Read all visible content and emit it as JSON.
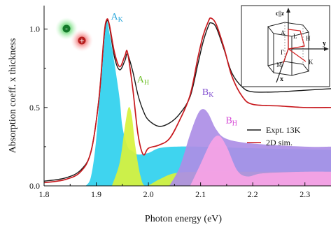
{
  "chart_data": {
    "type": "area",
    "xlabel": "Photon energy (eV)",
    "ylabel": "Absorption coeff. x thickness",
    "xlim": [
      1.8,
      2.35
    ],
    "ylim": [
      0,
      1.15
    ],
    "x_ticks": [
      1.8,
      1.9,
      2.0,
      2.1,
      2.2,
      2.3
    ],
    "x_tick_labels": [
      "1.8",
      "1.9",
      "2.0",
      "2.1",
      "2.2",
      "2.3"
    ],
    "y_ticks": [
      0,
      0.5,
      1.0
    ],
    "y_tick_labels": [
      "0.0",
      "0.5",
      "1.0"
    ],
    "grid": false,
    "legend_position": "right",
    "legend": [
      {
        "label": "Expt. 13K",
        "color": "#1a1a1a"
      },
      {
        "label": "2D sim.",
        "color": "#c8191e"
      }
    ],
    "lines": [
      {
        "name": "Expt. 13K",
        "color": "#1a1a1a",
        "points": [
          [
            1.8,
            0.03
          ],
          [
            1.84,
            0.05
          ],
          [
            1.87,
            0.1
          ],
          [
            1.89,
            0.22
          ],
          [
            1.905,
            0.55
          ],
          [
            1.915,
            0.95
          ],
          [
            1.92,
            1.05
          ],
          [
            1.925,
            1.02
          ],
          [
            1.935,
            0.82
          ],
          [
            1.945,
            0.74
          ],
          [
            1.955,
            0.8
          ],
          [
            1.96,
            0.84
          ],
          [
            1.97,
            0.73
          ],
          [
            1.98,
            0.58
          ],
          [
            1.99,
            0.48
          ],
          [
            2.0,
            0.42
          ],
          [
            2.02,
            0.38
          ],
          [
            2.04,
            0.4
          ],
          [
            2.06,
            0.46
          ],
          [
            2.08,
            0.57
          ],
          [
            2.095,
            0.78
          ],
          [
            2.105,
            0.92
          ],
          [
            2.115,
            1.02
          ],
          [
            2.12,
            1.04
          ],
          [
            2.13,
            1.01
          ],
          [
            2.145,
            0.87
          ],
          [
            2.16,
            0.72
          ],
          [
            2.18,
            0.63
          ],
          [
            2.2,
            0.6
          ],
          [
            2.25,
            0.6
          ],
          [
            2.3,
            0.61
          ],
          [
            2.35,
            0.62
          ]
        ]
      },
      {
        "name": "2D sim.",
        "color": "#c8191e",
        "points": [
          [
            1.8,
            0.02
          ],
          [
            1.84,
            0.04
          ],
          [
            1.87,
            0.09
          ],
          [
            1.89,
            0.22
          ],
          [
            1.905,
            0.55
          ],
          [
            1.915,
            0.96
          ],
          [
            1.92,
            1.06
          ],
          [
            1.925,
            1.03
          ],
          [
            1.935,
            0.85
          ],
          [
            1.945,
            0.76
          ],
          [
            1.955,
            0.83
          ],
          [
            1.96,
            0.85
          ],
          [
            1.97,
            0.62
          ],
          [
            1.98,
            0.33
          ],
          [
            1.99,
            0.2
          ],
          [
            2.0,
            0.24
          ],
          [
            2.02,
            0.26
          ],
          [
            2.04,
            0.3
          ],
          [
            2.06,
            0.42
          ],
          [
            2.08,
            0.58
          ],
          [
            2.095,
            0.82
          ],
          [
            2.105,
            0.96
          ],
          [
            2.115,
            1.05
          ],
          [
            2.12,
            1.07
          ],
          [
            2.13,
            1.03
          ],
          [
            2.145,
            0.88
          ],
          [
            2.16,
            0.7
          ],
          [
            2.18,
            0.57
          ],
          [
            2.2,
            0.52
          ],
          [
            2.25,
            0.51
          ],
          [
            2.3,
            0.5
          ],
          [
            2.35,
            0.5
          ]
        ]
      }
    ],
    "areas": [
      {
        "label": "A",
        "subscript": "K",
        "color": "#2fd0ee",
        "label_color": "#2aa6da",
        "points": [
          [
            1.88,
            0
          ],
          [
            1.89,
            0.06
          ],
          [
            1.9,
            0.3
          ],
          [
            1.91,
            0.75
          ],
          [
            1.915,
            0.95
          ],
          [
            1.92,
            1.05
          ],
          [
            1.925,
            0.98
          ],
          [
            1.935,
            0.78
          ],
          [
            1.945,
            0.55
          ],
          [
            1.95,
            0.38
          ],
          [
            1.96,
            0.25
          ],
          [
            1.97,
            0.22
          ],
          [
            1.98,
            0.2
          ],
          [
            2.0,
            0.21
          ],
          [
            2.02,
            0.24
          ],
          [
            2.05,
            0.25
          ],
          [
            2.1,
            0.25
          ],
          [
            2.2,
            0.24
          ],
          [
            2.35,
            0.23
          ],
          [
            2.35,
            0
          ],
          [
            1.88,
            0
          ]
        ]
      },
      {
        "label": "A",
        "subscript": "H",
        "color": "#d8f23c",
        "label_color": "#6fbf2a",
        "points": [
          [
            1.93,
            0
          ],
          [
            1.945,
            0.15
          ],
          [
            1.955,
            0.38
          ],
          [
            1.962,
            0.5
          ],
          [
            1.968,
            0.45
          ],
          [
            1.975,
            0.25
          ],
          [
            1.985,
            0.06
          ],
          [
            1.995,
            0
          ],
          [
            2.02,
            0.04
          ],
          [
            2.05,
            0.08
          ],
          [
            2.1,
            0.09
          ],
          [
            2.2,
            0.09
          ],
          [
            2.35,
            0.09
          ],
          [
            2.35,
            0
          ],
          [
            1.93,
            0
          ]
        ]
      },
      {
        "label": "B",
        "subscript": "K",
        "color": "#ad8ee6",
        "label_color": "#8250d0",
        "points": [
          [
            2.04,
            0
          ],
          [
            2.06,
            0.12
          ],
          [
            2.08,
            0.33
          ],
          [
            2.095,
            0.46
          ],
          [
            2.105,
            0.49
          ],
          [
            2.115,
            0.46
          ],
          [
            2.13,
            0.36
          ],
          [
            2.15,
            0.3
          ],
          [
            2.2,
            0.27
          ],
          [
            2.3,
            0.25
          ],
          [
            2.35,
            0.25
          ],
          [
            2.35,
            0
          ],
          [
            2.04,
            0
          ]
        ]
      },
      {
        "label": "B",
        "subscript": "H",
        "color": "#f7a3e5",
        "label_color": "#d648d6",
        "points": [
          [
            2.08,
            0
          ],
          [
            2.1,
            0.14
          ],
          [
            2.12,
            0.28
          ],
          [
            2.135,
            0.32
          ],
          [
            2.15,
            0.25
          ],
          [
            2.17,
            0.1
          ],
          [
            2.19,
            0.06
          ],
          [
            2.22,
            0.08
          ],
          [
            2.3,
            0.09
          ],
          [
            2.35,
            0.09
          ],
          [
            2.35,
            0
          ],
          [
            2.08,
            0
          ]
        ]
      }
    ],
    "area_labels": [
      {
        "x": 1.92,
        "y": 1.06
      },
      {
        "x": 1.97,
        "y": 0.66
      },
      {
        "x": 2.095,
        "y": 0.58
      },
      {
        "x": 2.14,
        "y": 0.4
      }
    ],
    "exciton_icons": [
      {
        "symbol": "-",
        "color": "#1fa43a"
      },
      {
        "symbol": "+",
        "color": "#e02828"
      }
    ],
    "brillouin_inset": {
      "labels": [
        "c||z",
        "y",
        "x",
        "A",
        "L",
        "H",
        "Γ",
        "M",
        "K"
      ]
    }
  }
}
